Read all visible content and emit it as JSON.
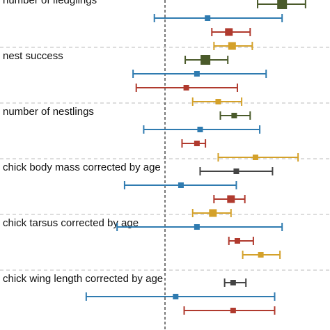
{
  "chart_data": {
    "type": "forest",
    "title": "",
    "xlabel": "",
    "ylabel": "",
    "xlim": [
      -1.55,
      1.55
    ],
    "reference_line_x": 0,
    "grid": "dashed horizontal separators between groups",
    "legend": "none",
    "colors": {
      "dark_olive": "#4a5a2a",
      "blue": "#2f7bb0",
      "red": "#b03a2e",
      "gold": "#d4a12a",
      "dark_gray": "#444444"
    },
    "groups": [
      {
        "label": "number of fledglings",
        "rows": [
          {
            "color": "dark_olive",
            "est": 1.1,
            "lo": 0.87,
            "hi": 1.32,
            "weight": 3
          },
          {
            "color": "blue",
            "est": 0.4,
            "lo": -0.1,
            "hi": 1.1,
            "weight": 1
          },
          {
            "color": "red",
            "est": 0.6,
            "lo": 0.44,
            "hi": 0.8,
            "weight": 2
          },
          {
            "color": "gold",
            "est": 0.63,
            "lo": 0.46,
            "hi": 0.82,
            "weight": 2
          }
        ]
      },
      {
        "label": "nest success",
        "rows": [
          {
            "color": "dark_olive",
            "est": 0.38,
            "lo": 0.19,
            "hi": 0.59,
            "weight": 3
          },
          {
            "color": "blue",
            "est": 0.3,
            "lo": -0.3,
            "hi": 0.95,
            "weight": 1
          },
          {
            "color": "red",
            "est": 0.2,
            "lo": -0.27,
            "hi": 0.68,
            "weight": 1
          },
          {
            "color": "gold",
            "est": 0.5,
            "lo": 0.26,
            "hi": 0.72,
            "weight": 1
          }
        ]
      },
      {
        "label": "number of nestlings",
        "rows": [
          {
            "color": "dark_olive",
            "est": 0.65,
            "lo": 0.52,
            "hi": 0.8,
            "weight": 1
          },
          {
            "color": "blue",
            "est": 0.33,
            "lo": -0.2,
            "hi": 0.89,
            "weight": 1
          },
          {
            "color": "red",
            "est": 0.3,
            "lo": 0.16,
            "hi": 0.38,
            "weight": 1
          },
          {
            "color": "gold",
            "est": 0.85,
            "lo": 0.5,
            "hi": 1.25,
            "weight": 1
          }
        ]
      },
      {
        "label": "chick body mass corrected by age",
        "rows": [
          {
            "color": "dark_gray",
            "est": 0.67,
            "lo": 0.33,
            "hi": 1.01,
            "weight": 1
          },
          {
            "color": "blue",
            "est": 0.15,
            "lo": -0.38,
            "hi": 0.67,
            "weight": 1
          },
          {
            "color": "red",
            "est": 0.62,
            "lo": 0.46,
            "hi": 0.75,
            "weight": 2
          },
          {
            "color": "gold",
            "est": 0.45,
            "lo": 0.26,
            "hi": 0.62,
            "weight": 2
          }
        ]
      },
      {
        "label": "chick tarsus corrected by age",
        "rows": [
          {
            "color": "blue",
            "est": 0.3,
            "lo": -0.45,
            "hi": 1.1,
            "weight": 1
          },
          {
            "color": "red",
            "est": 0.68,
            "lo": 0.6,
            "hi": 0.83,
            "weight": 1
          },
          {
            "color": "gold",
            "est": 0.9,
            "lo": 0.73,
            "hi": 1.08,
            "weight": 1
          }
        ]
      },
      {
        "label": "chick wing length corrected by age",
        "rows": [
          {
            "color": "dark_gray",
            "est": 0.64,
            "lo": 0.56,
            "hi": 0.76,
            "weight": 1
          },
          {
            "color": "blue",
            "est": 0.1,
            "lo": -0.74,
            "hi": 1.03,
            "weight": 1
          },
          {
            "color": "red",
            "est": 0.64,
            "lo": 0.18,
            "hi": 1.03,
            "weight": 1
          }
        ]
      }
    ]
  }
}
